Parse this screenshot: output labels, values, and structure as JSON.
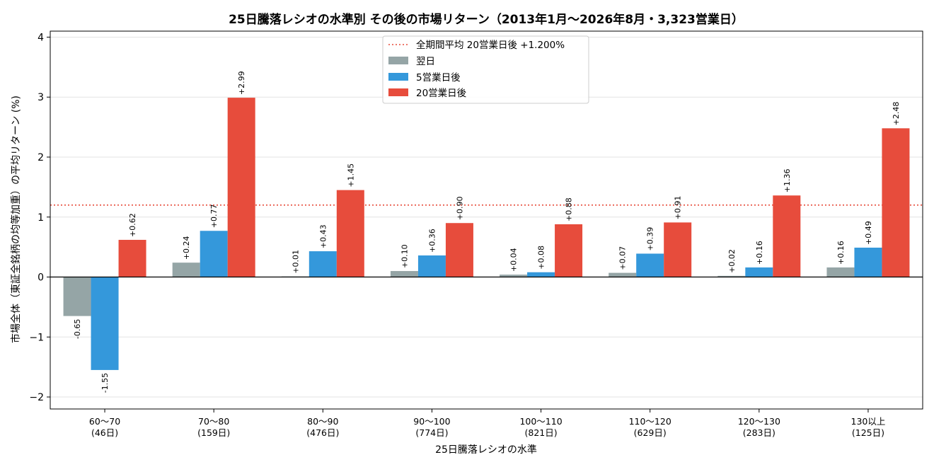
{
  "chart_data": {
    "type": "bar",
    "title": "25日騰落レシオの水準別 その後の市場リターン（2013年1月～2026年8月・3,323営業日）",
    "xlabel": "25日騰落レシオの水準",
    "ylabel": "市場全体（東証全銘柄の均等加重）の平均リターン (%)",
    "ylim": [
      -2.2,
      4.1
    ],
    "yticks": [
      -2,
      -1,
      0,
      1,
      2,
      3,
      4
    ],
    "yticks_display": [
      "−2",
      "−1",
      "0",
      "1",
      "2",
      "3",
      "4"
    ],
    "grid": true,
    "legend_position": "top-center",
    "categories": [
      {
        "range": "60～70",
        "days": "(46日)"
      },
      {
        "range": "70～80",
        "days": "(159日)"
      },
      {
        "range": "80～90",
        "days": "(476日)"
      },
      {
        "range": "90～100",
        "days": "(774日)"
      },
      {
        "range": "100～110",
        "days": "(821日)"
      },
      {
        "range": "110～120",
        "days": "(629日)"
      },
      {
        "range": "120～130",
        "days": "(283日)"
      },
      {
        "range": "130以上",
        "days": "(125日)"
      }
    ],
    "series": [
      {
        "name": "翌日",
        "color": "#95a5a6",
        "values": [
          -0.65,
          0.24,
          0.01,
          0.1,
          0.04,
          0.07,
          0.02,
          0.16
        ],
        "labels": [
          "-0.65",
          "+0.24",
          "+0.01",
          "+0.10",
          "+0.04",
          "+0.07",
          "+0.02",
          "+0.16"
        ]
      },
      {
        "name": "5営業日後",
        "color": "#3498db",
        "values": [
          -1.55,
          0.77,
          0.43,
          0.36,
          0.08,
          0.39,
          0.16,
          0.49
        ],
        "labels": [
          "-1.55",
          "+0.77",
          "+0.43",
          "+0.36",
          "+0.08",
          "+0.39",
          "+0.16",
          "+0.49"
        ]
      },
      {
        "name": "20営業日後",
        "color": "#e74c3c",
        "values": [
          0.62,
          2.99,
          1.45,
          0.9,
          0.88,
          0.91,
          1.36,
          2.48
        ],
        "labels": [
          "+0.62",
          "+2.99",
          "+1.45",
          "+0.90",
          "+0.88",
          "+0.91",
          "+1.36",
          "+2.48"
        ]
      }
    ],
    "reference_line": {
      "name": "全期間平均 20営業日後 +1.200%",
      "value": 1.2,
      "color": "#e74c3c",
      "style": "dotted"
    }
  }
}
